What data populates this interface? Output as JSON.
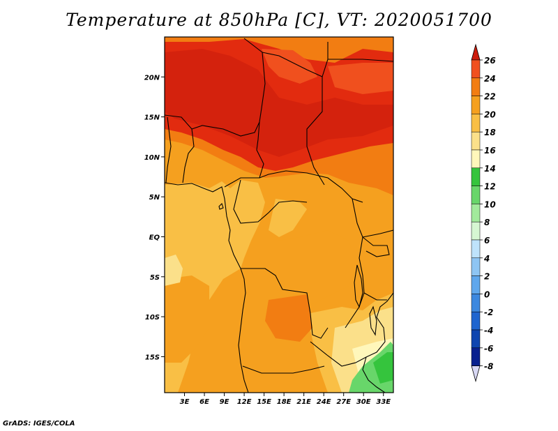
{
  "title": "Temperature at 850hPa [C], VT: 2020051700",
  "credit": "GrADS: IGES/COLA",
  "map": {
    "lon_range": [
      0,
      34.5
    ],
    "lat_range": [
      -19.5,
      25
    ],
    "lat_ticks": [
      {
        "value": 20,
        "label": "20N"
      },
      {
        "value": 15,
        "label": "15N"
      },
      {
        "value": 10,
        "label": "10N"
      },
      {
        "value": 5,
        "label": "5N"
      },
      {
        "value": 0,
        "label": "EQ"
      },
      {
        "value": -5,
        "label": "5S"
      },
      {
        "value": -10,
        "label": "10S"
      },
      {
        "value": -15,
        "label": "15S"
      }
    ],
    "lon_ticks": [
      {
        "value": 3,
        "label": "3E"
      },
      {
        "value": 6,
        "label": "6E"
      },
      {
        "value": 9,
        "label": "9E"
      },
      {
        "value": 12,
        "label": "12E"
      },
      {
        "value": 15,
        "label": "15E"
      },
      {
        "value": 18,
        "label": "18E"
      },
      {
        "value": 21,
        "label": "21E"
      },
      {
        "value": 24,
        "label": "24E"
      },
      {
        "value": 27,
        "label": "27E"
      },
      {
        "value": 30,
        "label": "30E"
      },
      {
        "value": 33,
        "label": "33E"
      }
    ]
  },
  "colorbar": {
    "levels": [
      {
        "label": "26",
        "color": "#e22b0f"
      },
      {
        "label": "24",
        "color": "#f0501e"
      },
      {
        "label": "22",
        "color": "#f27d12"
      },
      {
        "label": "20",
        "color": "#f5a01f"
      },
      {
        "label": "18",
        "color": "#f9bf45"
      },
      {
        "label": "16",
        "color": "#fbe08a"
      },
      {
        "label": "14",
        "color": "#fff7bb"
      },
      {
        "label": "12",
        "color": "#35c43d"
      },
      {
        "label": "10",
        "color": "#68d66a"
      },
      {
        "label": "8",
        "color": "#a2ea9c"
      },
      {
        "label": "6",
        "color": "#d6f6d2"
      },
      {
        "label": "4",
        "color": "#bfe3fb"
      },
      {
        "label": "2",
        "color": "#8ec5f3"
      },
      {
        "label": "0",
        "color": "#5fa7ec"
      },
      {
        "label": "-2",
        "color": "#3c88df"
      },
      {
        "label": "-4",
        "color": "#1f65cf"
      },
      {
        "label": "-6",
        "color": "#0e45b0"
      },
      {
        "label": "-8",
        "color": "#08208f"
      }
    ],
    "top_color": "#cc1c0c",
    "bottom_color": "#d8d8f4"
  }
}
